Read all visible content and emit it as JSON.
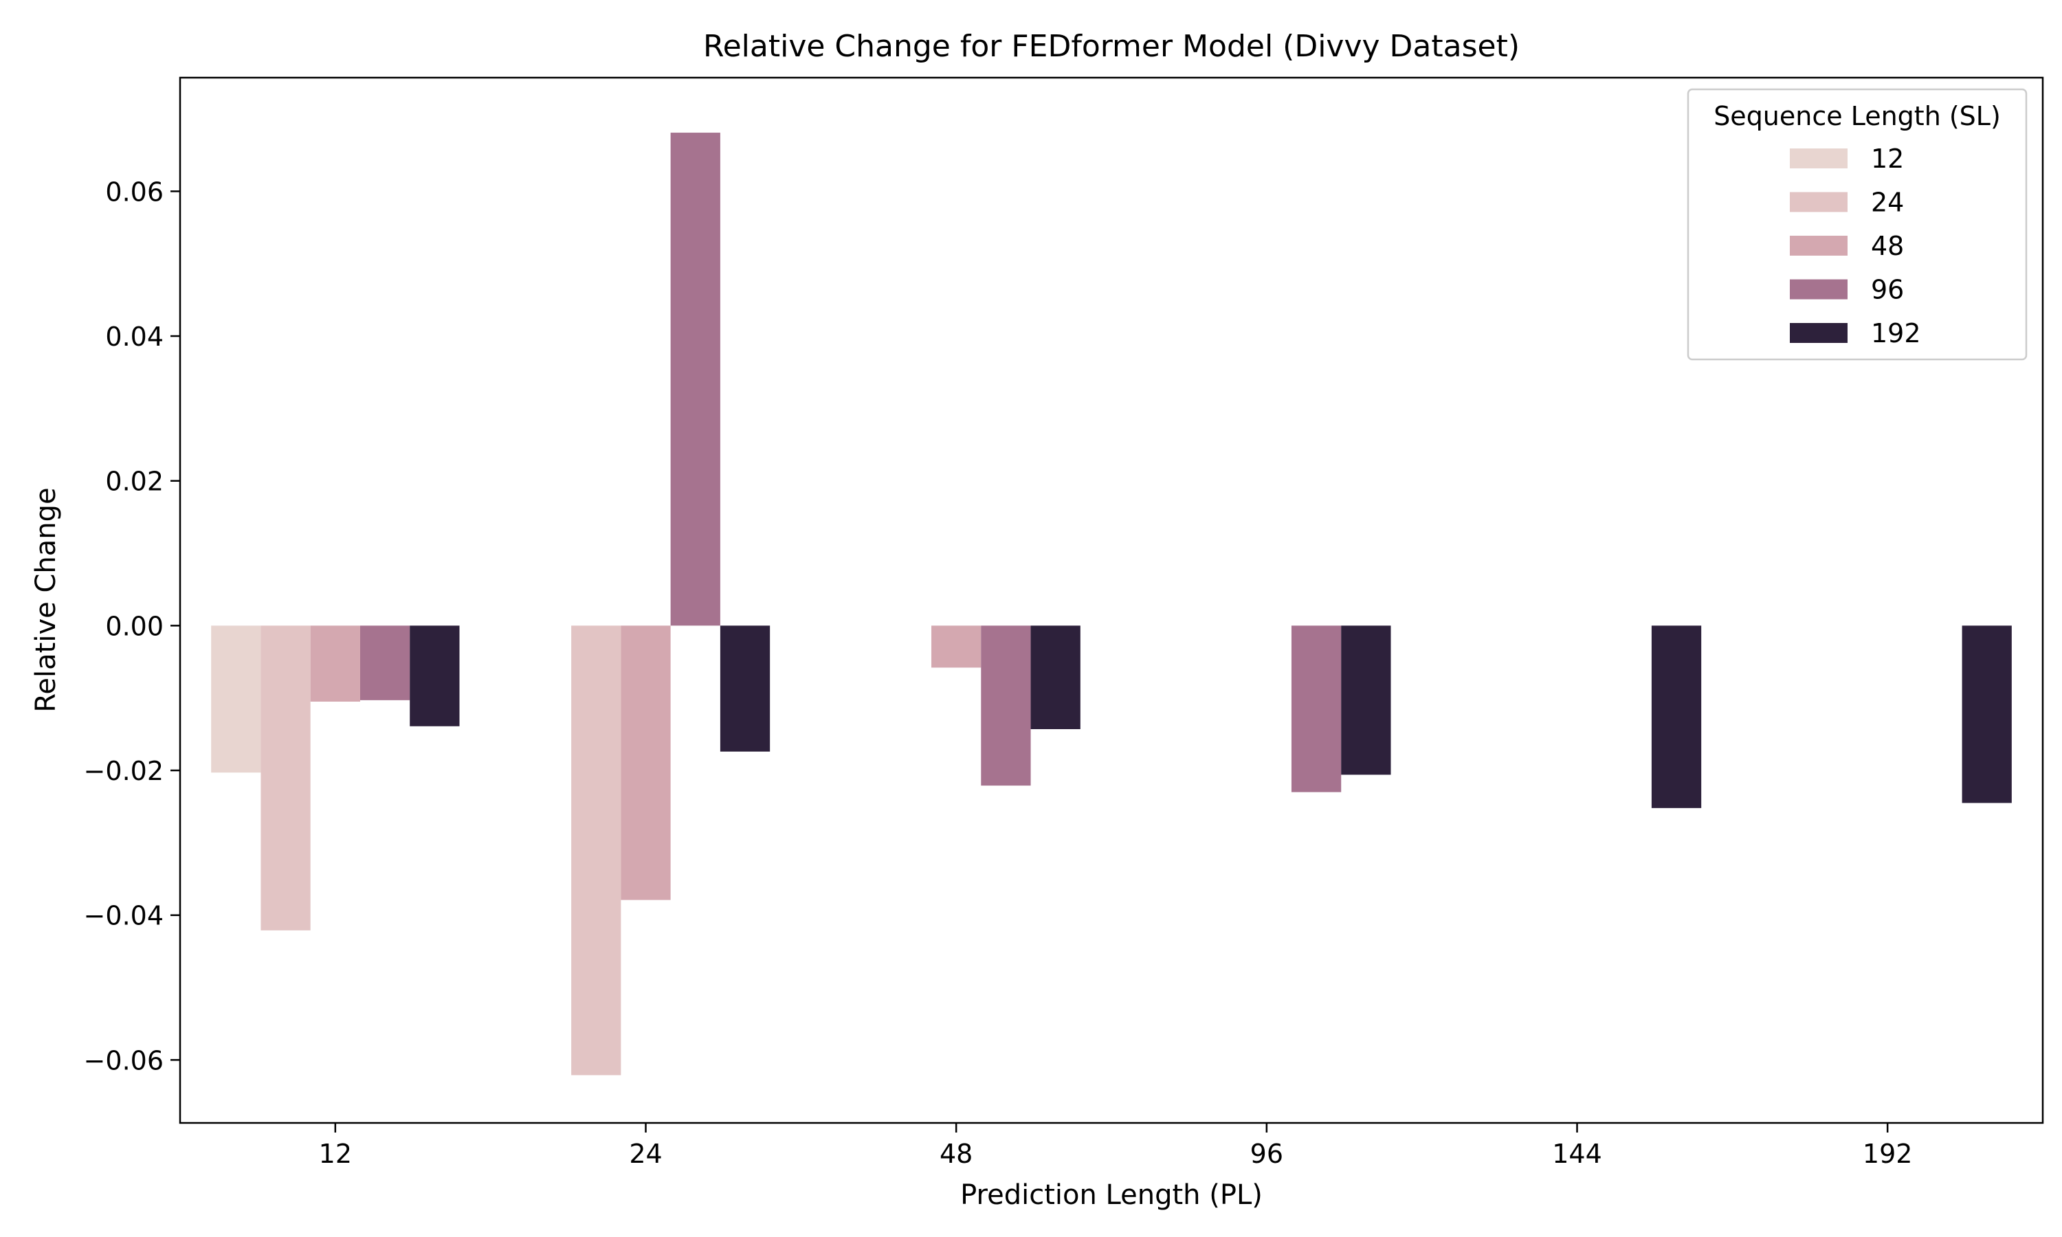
{
  "chart_data": {
    "type": "bar",
    "title": "Relative Change for FEDformer Model (Divvy Dataset)",
    "xlabel": "Prediction Length (PL)",
    "ylabel": "Relative Change",
    "categories": [
      "12",
      "24",
      "48",
      "96",
      "144",
      "192"
    ],
    "ylim": [
      -0.0687,
      0.0757
    ],
    "yticks": [
      -0.06,
      -0.04,
      -0.02,
      0.0,
      0.02,
      0.04,
      0.06
    ],
    "ytick_labels": [
      "−0.06",
      "−0.04",
      "−0.02",
      "0.00",
      "0.02",
      "0.04",
      "0.06"
    ],
    "grid": false,
    "legend": {
      "title": "Sequence Length (SL)",
      "placement": "top-right"
    },
    "series": [
      {
        "name": "12",
        "color": "#e8d5d0",
        "values": [
          -0.0203,
          null,
          null,
          null,
          null,
          null
        ]
      },
      {
        "name": "24",
        "color": "#e2c4c4",
        "values": [
          -0.0421,
          -0.0621,
          null,
          null,
          null,
          null
        ]
      },
      {
        "name": "48",
        "color": "#d4a8b0",
        "values": [
          -0.0105,
          -0.0379,
          -0.0058,
          null,
          null,
          null
        ]
      },
      {
        "name": "96",
        "color": "#a6738f",
        "values": [
          -0.0103,
          0.0681,
          -0.0221,
          -0.023,
          null,
          null
        ]
      },
      {
        "name": "192",
        "color": "#2d213b",
        "values": [
          -0.0139,
          -0.0174,
          -0.0143,
          -0.0206,
          -0.0252,
          -0.0245
        ]
      }
    ]
  }
}
